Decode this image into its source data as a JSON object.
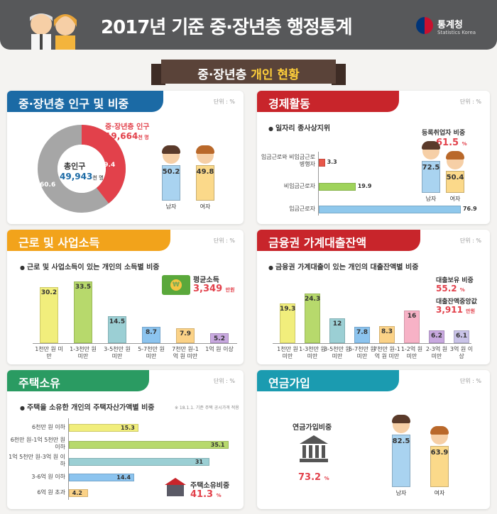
{
  "header": {
    "title": "2017년 기준 중·장년층 행정통계",
    "logo_name": "통계청",
    "logo_sub": "Statistics Korea"
  },
  "ribbon": {
    "prefix": "중·장년층",
    "highlight": "개인 현황"
  },
  "colors": {
    "blue": "#1b6aa5",
    "orange": "#f2a31b",
    "red": "#c8252b",
    "green": "#2a9b62",
    "teal": "#1b9bb0"
  },
  "population": {
    "title": "중·장년층 인구 및 비중",
    "unit": "단위 : %",
    "callout_label": "중·장년층 인구",
    "callout_value": "19,664",
    "callout_unit": "천 명",
    "center_label": "총인구",
    "center_value": "49,943",
    "center_unit": "천 명",
    "male_label": "남자",
    "female_label": "여자"
  },
  "economic": {
    "title": "경제활동",
    "unit": "단위 : %",
    "sub": "일자리 종사상지위",
    "reg_label": "등록취업자 비중",
    "reg_value": "61.5",
    "reg_unit": "%",
    "male_label": "남자",
    "female_label": "여자"
  },
  "income": {
    "title": "근로 및 사업소득",
    "unit": "단위 : %",
    "sub": "근로 및 사업소득이 있는 개인의 소득별 비중",
    "avg_label": "평균소득",
    "avg_value": "3,349",
    "avg_unit": "만원"
  },
  "debt": {
    "title": "금융권 가계대출잔액",
    "unit": "단위 : %",
    "sub": "금융권 가계대출이 있는 개인의 대출잔액별 비중",
    "hold_label": "대출보유 비중",
    "hold_value": "55.2",
    "hold_unit": "%",
    "median_label": "대출잔액중앙값",
    "median_value": "3,911",
    "median_unit": "만원"
  },
  "housing": {
    "title": "주택소유",
    "unit": "단위 : %",
    "sub": "주택을 소유한 개인의 주택자산가액별 비중",
    "note": "※ 18.1.1. 기준 주택 공시가격 적용",
    "own_label": "주택소유비중",
    "own_value": "41.3",
    "own_unit": "%"
  },
  "pension": {
    "title": "연금가입",
    "unit": "단위 : %",
    "rate_label": "연금가입비중",
    "rate_value": "73.2",
    "rate_unit": "%",
    "male_label": "남자",
    "female_label": "여자"
  },
  "chart_data": [
    {
      "type": "pie",
      "categories": [
        "중·장년층 인구",
        "기타"
      ],
      "values": [
        39.4,
        60.6
      ]
    },
    {
      "type": "bar",
      "categories": [
        "남자",
        "여자"
      ],
      "values": [
        50.2,
        49.8
      ]
    },
    {
      "type": "bar",
      "categories": [
        "임금근로와 비임금근로 병행자",
        "비임금근로자",
        "임금근로자"
      ],
      "values": [
        3.3,
        19.9,
        76.9
      ]
    },
    {
      "type": "bar",
      "categories": [
        "남자",
        "여자"
      ],
      "values": [
        72.5,
        50.4
      ]
    },
    {
      "type": "bar",
      "categories": [
        "1천만 원 미만",
        "1-3천만 원 미만",
        "3-5천만 원 미만",
        "5-7천만 원 미만",
        "7천만 원-1억 원 미만",
        "1억 원 이상"
      ],
      "values": [
        30.2,
        33.5,
        14.5,
        8.7,
        7.9,
        5.2
      ]
    },
    {
      "type": "bar",
      "categories": [
        "1천만 원 미만",
        "1-3천만 원 미만",
        "3-5천만 원 미만",
        "5-7천만 원 미만",
        "7천만 원-1억 원 미만",
        "1-2억 원 미만",
        "2-3억 원 미만",
        "3억 원 이상"
      ],
      "values": [
        19.3,
        24.3,
        12.0,
        7.8,
        8.3,
        16.0,
        6.2,
        6.1
      ]
    },
    {
      "type": "bar",
      "categories": [
        "6천만 원 이하",
        "6천만 원-1억 5천만 원 이하",
        "1억 5천만 원-3억 원 이하",
        "3-6억 원 이하",
        "6억 원 초과"
      ],
      "values": [
        15.3,
        35.1,
        31.0,
        14.4,
        4.2
      ]
    },
    {
      "type": "bar",
      "categories": [
        "남자",
        "여자"
      ],
      "values": [
        82.5,
        63.9
      ]
    }
  ]
}
